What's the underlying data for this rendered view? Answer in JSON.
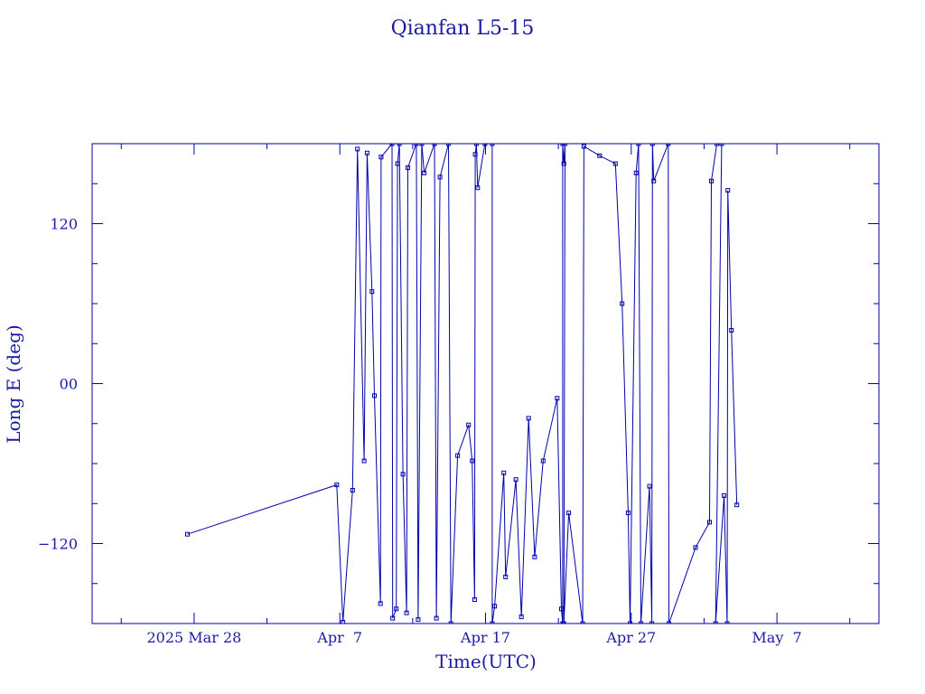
{
  "chart_data": {
    "type": "line",
    "title": "Qianfan L5-15",
    "xlabel": "Time(UTC)",
    "ylabel": "Long E (deg)",
    "color": "#0000aa",
    "xlim": [
      "2025-03-21",
      "2025-05-14"
    ],
    "ylim": [
      -180,
      180
    ],
    "x_ticks": [
      {
        "date": "2025-03-28",
        "label": "2025 Mar 28"
      },
      {
        "date": "2025-04-07",
        "label": "Apr  7"
      },
      {
        "date": "2025-04-17",
        "label": "Apr 17"
      },
      {
        "date": "2025-04-27",
        "label": "Apr 27"
      },
      {
        "date": "2025-05-07",
        "label": "May  7"
      }
    ],
    "x_minor_ticks": [
      "2025-03-23",
      "2025-04-02",
      "2025-04-12",
      "2025-04-22",
      "2025-05-02",
      "2025-05-12"
    ],
    "y_ticks": [
      {
        "value": 120,
        "label": "120"
      },
      {
        "value": 0,
        "label": "00"
      },
      {
        "value": -120,
        "label": "−120"
      }
    ],
    "y_minor_ticks": [
      -150,
      -90,
      -60,
      -30,
      30,
      60,
      90,
      150
    ],
    "series": [
      {
        "points": [
          [
            "2025-03-27T13:00",
            -113
          ],
          [
            "2025-04-06T19:00",
            -76
          ],
          [
            "2025-04-07T05:00",
            -179
          ],
          [
            "2025-04-07T21:00",
            -80
          ],
          [
            "2025-04-08T05:00",
            176
          ],
          [
            "2025-04-08T16:00",
            -58
          ],
          [
            "2025-04-08T21:00",
            173
          ],
          [
            "2025-04-09T05:00",
            69
          ],
          [
            "2025-04-09T09:00",
            -9
          ],
          [
            "2025-04-09T19:00",
            -165
          ],
          [
            "2025-04-09T20:00",
            170
          ],
          [
            "2025-04-10T14:00",
            180
          ],
          [
            "2025-04-10T15:00",
            -176
          ],
          [
            "2025-04-10T21:00",
            -169
          ],
          [
            "2025-04-10T23:00",
            165
          ],
          [
            "2025-04-11T02:00",
            180
          ],
          [
            "2025-04-11T08:00",
            -68
          ],
          [
            "2025-04-11T14:00",
            -172
          ],
          [
            "2025-04-11T16:00",
            162
          ],
          [
            "2025-04-12T06:00",
            180
          ],
          [
            "2025-04-12T09:00",
            -177
          ],
          [
            "2025-04-12T15:00",
            180
          ],
          [
            "2025-04-12T19:00",
            158
          ],
          [
            "2025-04-13T12:00",
            180
          ],
          [
            "2025-04-13T15:00",
            -176
          ],
          [
            "2025-04-13T21:00",
            155
          ],
          [
            "2025-04-14T11:00",
            180
          ],
          [
            "2025-04-14T15:00",
            -180
          ],
          [
            "2025-04-15T02:00",
            -54
          ],
          [
            "2025-04-15T20:00",
            -31
          ],
          [
            "2025-04-16T02:00",
            -58
          ],
          [
            "2025-04-16T06:00",
            -162
          ],
          [
            "2025-04-16T07:00",
            172
          ],
          [
            "2025-04-16T09:00",
            180
          ],
          [
            "2025-04-16T11:00",
            147
          ],
          [
            "2025-04-16T23:00",
            180
          ],
          [
            "2025-04-17T11:00",
            180
          ],
          [
            "2025-04-17T11:00",
            -180
          ],
          [
            "2025-04-17T15:00",
            -167
          ],
          [
            "2025-04-18T06:00",
            -67
          ],
          [
            "2025-04-18T09:00",
            -145
          ],
          [
            "2025-04-19T02:00",
            -72
          ],
          [
            "2025-04-19T11:00",
            -175
          ],
          [
            "2025-04-19T23:00",
            -26
          ],
          [
            "2025-04-20T09:00",
            -130
          ],
          [
            "2025-04-20T23:00",
            -58
          ],
          [
            "2025-04-21T22:00",
            -11
          ],
          [
            "2025-04-22T05:00",
            -169
          ],
          [
            "2025-04-22T07:00",
            -180
          ],
          [
            "2025-04-22T07:00",
            180
          ],
          [
            "2025-04-22T09:00",
            165
          ],
          [
            "2025-04-22T11:00",
            180
          ],
          [
            "2025-04-22T09:00",
            -180
          ],
          [
            "2025-04-22T17:00",
            -97
          ],
          [
            "2025-04-23T16:00",
            -180
          ],
          [
            "2025-04-23T18:00",
            178
          ],
          [
            "2025-04-24T20:00",
            171
          ],
          [
            "2025-04-25T22:00",
            165
          ],
          [
            "2025-04-26T09:00",
            60
          ],
          [
            "2025-04-26T19:00",
            -97
          ],
          [
            "2025-04-26T22:00",
            -180
          ],
          [
            "2025-04-27T08:00",
            158
          ],
          [
            "2025-04-27T12:00",
            180
          ],
          [
            "2025-04-27T16:00",
            -180
          ],
          [
            "2025-04-28T06:00",
            -77
          ],
          [
            "2025-04-28T10:00",
            -180
          ],
          [
            "2025-04-28T11:00",
            180
          ],
          [
            "2025-04-28T13:00",
            152
          ],
          [
            "2025-04-29T13:00",
            180
          ],
          [
            "2025-04-29T14:00",
            -180
          ],
          [
            "2025-05-01T10:00",
            -123
          ],
          [
            "2025-05-02T09:00",
            -104
          ],
          [
            "2025-05-02T12:00",
            152
          ],
          [
            "2025-05-02T21:00",
            180
          ],
          [
            "2025-05-03T05:00",
            180
          ],
          [
            "2025-05-02T19:00",
            -180
          ],
          [
            "2025-05-03T09:00",
            -84
          ],
          [
            "2025-05-03T14:00",
            -180
          ],
          [
            "2025-05-03T15:00",
            145
          ],
          [
            "2025-05-03T21:00",
            40
          ],
          [
            "2025-05-04T06:00",
            -91
          ]
        ]
      }
    ],
    "grid": false,
    "markers": "small squares"
  }
}
